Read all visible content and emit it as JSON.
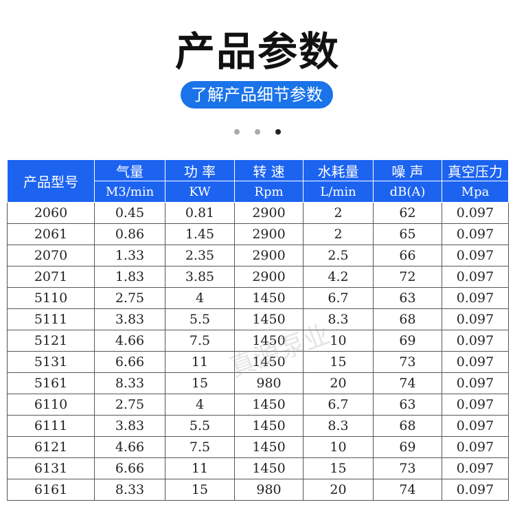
{
  "title": "产品参数",
  "subtitle_button": "了解产品细节参数",
  "carousel": {
    "count": 3,
    "active": 3
  },
  "watermark": "真源泵业",
  "table": {
    "model_header": "产品型号",
    "headers": [
      {
        "name": "气量",
        "unit": "M3/min"
      },
      {
        "name": "功 率",
        "unit": "KW"
      },
      {
        "name": "转 速",
        "unit": "Rpm"
      },
      {
        "name": "水耗量",
        "unit": "L/min"
      },
      {
        "name": "噪 声",
        "unit": "dB(A)"
      },
      {
        "name": "真空压力",
        "unit": "Mpa"
      }
    ],
    "rows": [
      [
        "2060",
        "0.45",
        "0.81",
        "2900",
        "2",
        "62",
        "0.097"
      ],
      [
        "2061",
        "0.86",
        "1.45",
        "2900",
        "2",
        "65",
        "0.097"
      ],
      [
        "2070",
        "1.33",
        "2.35",
        "2900",
        "2.5",
        "66",
        "0.097"
      ],
      [
        "2071",
        "1.83",
        "3.85",
        "2900",
        "4.2",
        "72",
        "0.097"
      ],
      [
        "5110",
        "2.75",
        "4",
        "1450",
        "6.7",
        "63",
        "0.097"
      ],
      [
        "5111",
        "3.83",
        "5.5",
        "1450",
        "8.3",
        "68",
        "0.097"
      ],
      [
        "5121",
        "4.66",
        "7.5",
        "1450",
        "10",
        "69",
        "0.097"
      ],
      [
        "5131",
        "6.66",
        "11",
        "1450",
        "15",
        "73",
        "0.097"
      ],
      [
        "5161",
        "8.33",
        "15",
        "980",
        "20",
        "74",
        "0.097"
      ],
      [
        "6110",
        "2.75",
        "4",
        "1450",
        "6.7",
        "63",
        "0.097"
      ],
      [
        "6111",
        "3.83",
        "5.5",
        "1450",
        "8.3",
        "68",
        "0.097"
      ],
      [
        "6121",
        "4.66",
        "7.5",
        "1450",
        "10",
        "69",
        "0.097"
      ],
      [
        "6131",
        "6.66",
        "11",
        "1450",
        "15",
        "73",
        "0.097"
      ],
      [
        "6161",
        "8.33",
        "15",
        "980",
        "20",
        "74",
        "0.097"
      ]
    ]
  },
  "colors": {
    "header_bg": "#1c63f0",
    "button_bg": "#1a73e8"
  }
}
